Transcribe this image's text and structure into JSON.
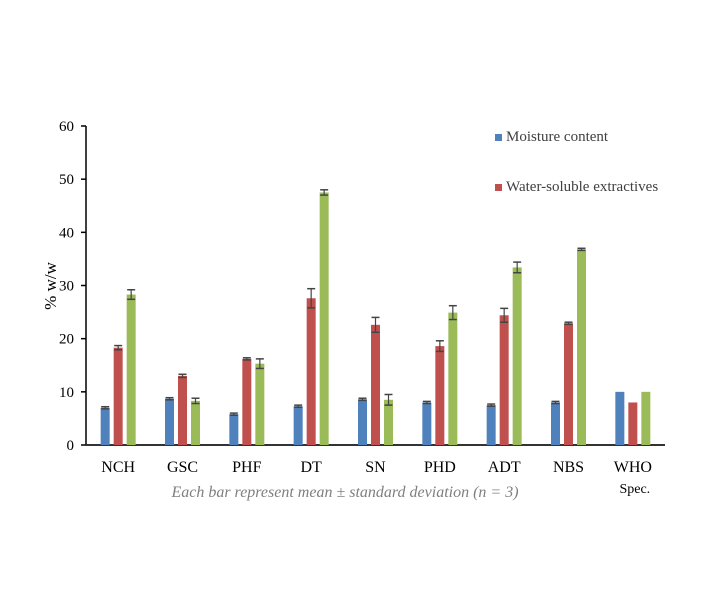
{
  "chart_data": {
    "type": "bar",
    "ylabel": "% w/w",
    "xlabel": "Each bar represent mean ± standard deviation (n = 3)",
    "ylim": [
      0,
      60
    ],
    "yticks": [
      0,
      10,
      20,
      30,
      40,
      50,
      60
    ],
    "grid": false,
    "legend_placement": "top-right",
    "categories": [
      "NCH",
      "GSC",
      "PHF",
      "DT",
      "SN",
      "PHD",
      "ADT",
      "NBS",
      "WHO Spec."
    ],
    "series": [
      {
        "name": "Moisture content",
        "color": "#4f81bd",
        "values": [
          7.0,
          8.7,
          5.8,
          7.3,
          8.6,
          8.0,
          7.5,
          8.0,
          10.0
        ],
        "errors": [
          0.2,
          0.2,
          0.2,
          0.2,
          0.2,
          0.2,
          0.2,
          0.2,
          0
        ]
      },
      {
        "name": "Water-soluble extractives",
        "color": "#c0504d",
        "values": [
          18.3,
          13.0,
          16.2,
          27.6,
          22.6,
          18.6,
          24.4,
          22.9,
          8.0
        ],
        "errors": [
          0.4,
          0.3,
          0.2,
          1.8,
          1.4,
          1.0,
          1.3,
          0.2,
          0
        ]
      },
      {
        "color": "#9bbb59",
        "values": [
          28.3,
          8.3,
          15.3,
          47.5,
          8.5,
          24.9,
          33.4,
          36.8,
          10.0
        ],
        "errors": [
          0.9,
          0.5,
          0.9,
          0.5,
          1.0,
          1.3,
          1.0,
          0.2,
          0
        ]
      }
    ]
  }
}
